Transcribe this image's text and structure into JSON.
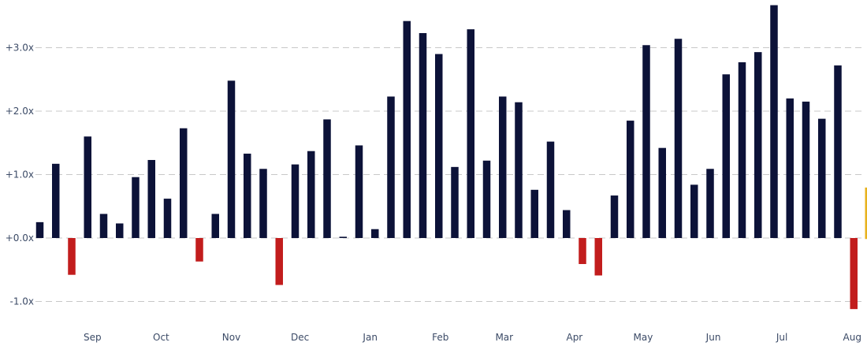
{
  "chart_data": {
    "type": "bar",
    "title": "",
    "xlabel": "",
    "ylabel": "",
    "ylim": [
      -1.2,
      3.7
    ],
    "grid": "horizontal dashed",
    "legend": "none",
    "y_ticks": [
      {
        "value": -1.0,
        "label": "-1.0x"
      },
      {
        "value": 0.0,
        "label": "+0.0x"
      },
      {
        "value": 1.0,
        "label": "+1.0x"
      },
      {
        "value": 2.0,
        "label": "+2.0x"
      },
      {
        "value": 3.0,
        "label": "+3.0x"
      }
    ],
    "x_ticks": [
      {
        "index": 3.3,
        "label": "Sep"
      },
      {
        "index": 7.6,
        "label": "Oct"
      },
      {
        "index": 12.0,
        "label": "Nov"
      },
      {
        "index": 16.3,
        "label": "Dec"
      },
      {
        "index": 20.7,
        "label": "Jan"
      },
      {
        "index": 25.1,
        "label": "Feb"
      },
      {
        "index": 29.1,
        "label": "Mar"
      },
      {
        "index": 33.5,
        "label": "Apr"
      },
      {
        "index": 37.8,
        "label": "May"
      },
      {
        "index": 42.2,
        "label": "Jun"
      },
      {
        "index": 46.5,
        "label": "Jul"
      },
      {
        "index": 50.9,
        "label": "Aug"
      }
    ],
    "values": [
      0.25,
      1.17,
      -0.58,
      1.6,
      0.38,
      0.23,
      0.96,
      1.23,
      0.62,
      1.73,
      -0.37,
      0.38,
      2.48,
      1.33,
      1.09,
      -0.74,
      1.16,
      1.37,
      1.87,
      0.02,
      1.46,
      0.14,
      2.23,
      3.42,
      3.23,
      2.9,
      1.12,
      3.29,
      1.22,
      2.23,
      2.14,
      0.76,
      1.52,
      0.44,
      -0.41,
      -0.59,
      0.67,
      1.85,
      3.04,
      1.42,
      3.14,
      0.84,
      1.09,
      2.58,
      2.77,
      2.93,
      3.67,
      2.2,
      2.15,
      1.88,
      2.72,
      -1.12,
      0.78
    ],
    "highlight_index": 52,
    "colors": {
      "positive": "#0c1238",
      "negative": "#c21d1d",
      "highlight_border": "#e8b21e",
      "grid": "#c8c8c8",
      "tick_text": "#3b4a66"
    }
  }
}
